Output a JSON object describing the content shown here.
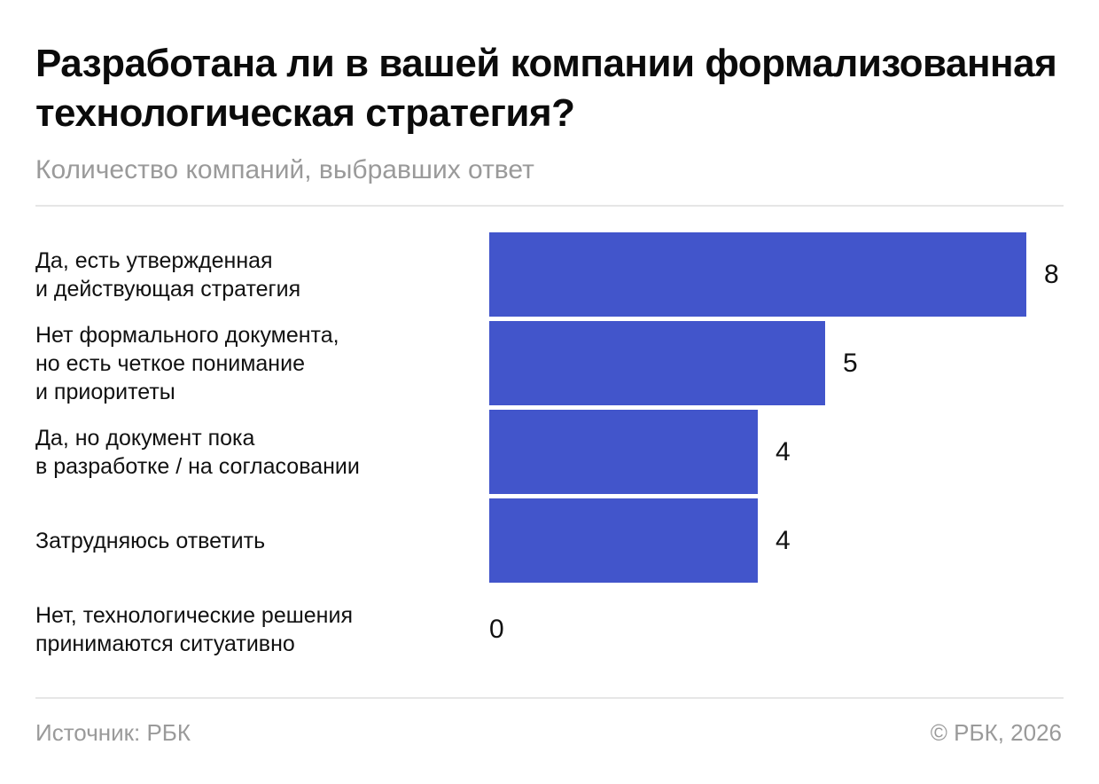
{
  "header": {
    "title": "Разработана ли в вашей компании формализованная технологическая стратегия?",
    "subtitle": "Количество компаний, выбравших ответ"
  },
  "chart_data": {
    "type": "bar",
    "orientation": "horizontal",
    "title": "Разработана ли в вашей компании формализованная технологическая стратегия?",
    "subtitle": "Количество компаний, выбравших ответ",
    "categories": [
      "Да, есть утвержденная\nи действующая стратегия",
      "Нет формального документа,\nно есть четкое понимание\nи приоритеты",
      "Да, но документ пока\nв разработке / на согласовании",
      "Затрудняюсь ответить",
      "Нет, технологические решения\nпринимаются ситуативно"
    ],
    "values": [
      8,
      5,
      4,
      4,
      0
    ],
    "xlim": [
      0,
      8
    ],
    "grid": false,
    "legend": "none",
    "bar_color": "#4255cb"
  },
  "footer": {
    "source": "Источник: РБК",
    "copyright": "© РБК, 2026"
  }
}
